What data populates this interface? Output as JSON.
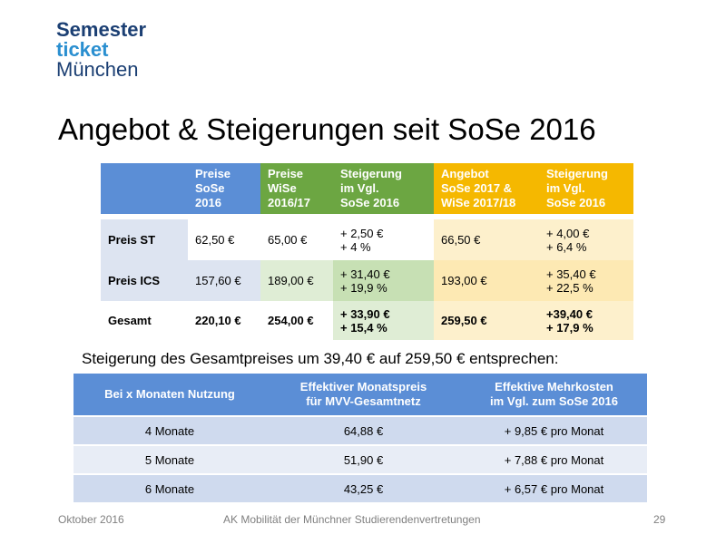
{
  "logo": {
    "line1": "Semester",
    "line2": "ticket",
    "line3": "München"
  },
  "title": "Angebot & Steigerungen seit SoSe 2016",
  "table1": {
    "headers": {
      "sose2016": [
        "Preise",
        "SoSe",
        "2016"
      ],
      "wise2016": [
        "Preise",
        "WiSe",
        "2016/17"
      ],
      "steigerung1": [
        "Steigerung",
        "im Vgl.",
        "SoSe 2016"
      ],
      "angebot": [
        "Angebot",
        "SoSe 2017 &",
        "WiSe 2017/18"
      ],
      "steigerung2": [
        "Steigerung",
        "im Vgl.",
        "SoSe 2016"
      ]
    },
    "rows": [
      {
        "label": "Preis ST",
        "sose": "62,50 €",
        "wise": "65,00 €",
        "st1a": "+ 2,50 €",
        "st1b": "+ 4 %",
        "angebot": "66,50 €",
        "st2a": "+ 4,00 €",
        "st2b": "+ 6,4 %"
      },
      {
        "label": "Preis ICS",
        "sose": "157,60 €",
        "wise": "189,00 €",
        "st1a": "+ 31,40 €",
        "st1b": "+ 19,9 %",
        "angebot": "193,00 €",
        "st2a": "+ 35,40 €",
        "st2b": "+ 22,5 %"
      },
      {
        "label": "Gesamt",
        "sose": "220,10 €",
        "wise": "254,00 €",
        "st1a": "+ 33,90 €",
        "st1b": "+ 15,4 %",
        "angebot": "259,50 €",
        "st2a": "+39,40 €",
        "st2b": "+ 17,9 %"
      }
    ]
  },
  "subtitle": "Steigerung des Gesamtpreises um 39,40 € auf 259,50 € entsprechen:",
  "table2": {
    "headers": {
      "col1": "Bei x Monaten Nutzung",
      "col2": [
        "Effektiver Monatspreis",
        "für MVV-Gesamtnetz"
      ],
      "col3": [
        "Effektive Mehrkosten",
        "im Vgl. zum SoSe 2016"
      ]
    },
    "rows": [
      {
        "months": "4 Monate",
        "price": "64,88 €",
        "extra": "+ 9,85 € pro Monat"
      },
      {
        "months": "5 Monate",
        "price": "51,90 €",
        "extra": "+ 7,88 € pro Monat"
      },
      {
        "months": "6 Monate",
        "price": "43,25 €",
        "extra": "+ 6,57 € pro Monat"
      }
    ]
  },
  "footer": {
    "date": "Oktober 2016",
    "org": "AK Mobilität der Münchner  Studierendenvertretungen",
    "page": "29"
  }
}
